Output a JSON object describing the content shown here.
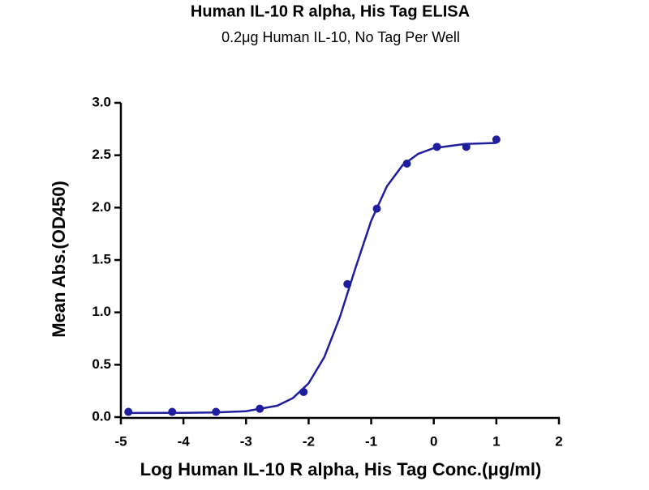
{
  "chart_data": {
    "type": "scatter",
    "title": "Human IL-10 R alpha, His Tag ELISA",
    "subtitle": "0.2μg Human IL-10, No Tag Per Well",
    "x_label": "Log Human IL-10 R alpha, His Tag Conc.(μg/ml)",
    "y_label": "Mean Abs.(OD450)",
    "xlim": [
      -5,
      2
    ],
    "xticks": [
      -5,
      -4,
      -3,
      -2,
      -1,
      0,
      1,
      2
    ],
    "ylim": [
      0,
      3
    ],
    "yticks": [
      {
        "value": 0,
        "label": "0.0"
      },
      0.5,
      {
        "value": 1,
        "label": "1.0"
      },
      1.5,
      {
        "value": 2,
        "label": "2.0"
      },
      2.5,
      {
        "value": 3,
        "label": "3.0"
      }
    ],
    "series": [
      {
        "mode": "line",
        "color": "#1f1f9e",
        "x": [
          -4.9,
          -4,
          -3.5,
          -3,
          -2.5,
          -2.25,
          -2,
          -1.75,
          -1.5,
          -1.25,
          -1,
          -0.75,
          -0.5,
          -0.25,
          0,
          0.5,
          1
        ],
        "values": [
          0.04,
          0.041,
          0.044,
          0.056,
          0.109,
          0.182,
          0.323,
          0.572,
          0.955,
          1.426,
          1.874,
          2.203,
          2.404,
          2.513,
          2.568,
          2.608,
          2.617
        ]
      },
      {
        "mode": "markers",
        "color": "#1f1f9e",
        "x": [
          -4.88,
          -4.18,
          -3.48,
          -2.78,
          -2.08,
          -1.38,
          -0.91,
          -0.43,
          0.05,
          0.52,
          1.0
        ],
        "values": [
          0.05,
          0.05,
          0.05,
          0.08,
          0.24,
          1.27,
          1.99,
          2.42,
          2.58,
          2.58,
          2.65
        ]
      }
    ]
  }
}
